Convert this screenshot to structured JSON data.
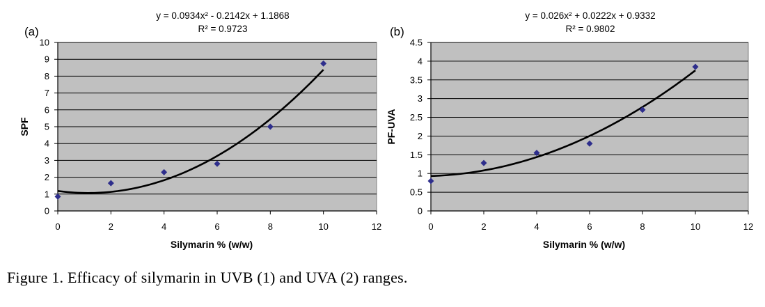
{
  "chart_data": [
    {
      "type": "scatter",
      "panel_label": "(a)",
      "title": "y = 0.0934x² - 0.2142x + 1.1868",
      "subtitle": "R² = 0.9723",
      "xlabel": "Silymarin % (w/w)",
      "ylabel": "SPF",
      "xlim": [
        0,
        12
      ],
      "ylim": [
        0,
        10
      ],
      "xticks": [
        "0",
        "2",
        "4",
        "6",
        "8",
        "10",
        "12"
      ],
      "yticks": [
        "0",
        "1",
        "2",
        "3",
        "4",
        "5",
        "6",
        "7",
        "8",
        "9",
        "10"
      ],
      "grid": "horizontal",
      "background": "#c0c0c0",
      "marker_color": "#2e2e8c",
      "trendline": {
        "type": "polynomial",
        "coef": [
          0.0934,
          -0.2142,
          1.1868
        ],
        "x_range": [
          0,
          10
        ]
      },
      "series": [
        {
          "x": [
            0,
            2,
            4,
            6,
            8,
            10
          ],
          "y": [
            0.85,
            1.65,
            2.3,
            2.8,
            5.0,
            8.75
          ]
        }
      ]
    },
    {
      "type": "scatter",
      "panel_label": "(b)",
      "title": "y = 0.026x² + 0.0222x + 0.9332",
      "subtitle": "R² = 0.9802",
      "xlabel": "Silymarin % (w/w)",
      "ylabel": "PF-UVA",
      "xlim": [
        0,
        12
      ],
      "ylim": [
        0,
        4.5
      ],
      "xticks": [
        "0",
        "2",
        "4",
        "6",
        "8",
        "10",
        "12"
      ],
      "yticks": [
        "0",
        "0.5",
        "1",
        "1.5",
        "2",
        "2.5",
        "3",
        "3.5",
        "4",
        "4.5"
      ],
      "grid": "horizontal",
      "background": "#c0c0c0",
      "marker_color": "#2e2e8c",
      "trendline": {
        "type": "polynomial",
        "coef": [
          0.026,
          0.0222,
          0.9332
        ],
        "x_range": [
          0,
          10
        ]
      },
      "series": [
        {
          "x": [
            0,
            2,
            4,
            6,
            8,
            10
          ],
          "y": [
            0.8,
            1.28,
            1.55,
            1.8,
            2.7,
            3.85
          ]
        }
      ]
    }
  ],
  "caption": "Figure 1.  Efficacy of silymarin in UVB (1) and UVA (2) ranges."
}
